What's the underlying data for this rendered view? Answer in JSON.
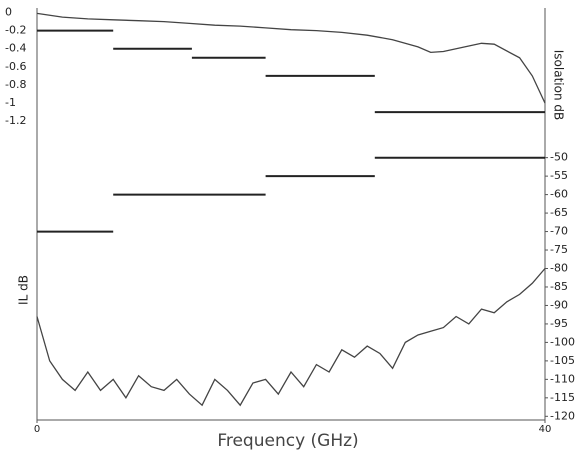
{
  "chart_data": {
    "type": "line",
    "xlabel": "Frequency (GHz)",
    "ylabel": "IL dB",
    "y2label": "Isolation dB",
    "xlim": [
      0,
      40
    ],
    "xticks": [
      0,
      40
    ],
    "ylim": [
      -4.5,
      0.05
    ],
    "yticks": [
      0,
      -0.2,
      -0.4,
      -0.6,
      -0.8,
      -1,
      -1.2
    ],
    "y2lim": [
      -121,
      -9.5
    ],
    "y2ticks": [
      -50,
      -55,
      -60,
      -65,
      -70,
      -75,
      -80,
      -85,
      -90,
      -95,
      -100,
      -105,
      -110,
      -115,
      -120
    ],
    "series": [
      {
        "color": "#444444",
        "line_width": 1.3,
        "axis": "y",
        "x": [
          0,
          2,
          4,
          6,
          8,
          10,
          12,
          14,
          16,
          18,
          20,
          22,
          24,
          26,
          28,
          30,
          31,
          32,
          34,
          35,
          36,
          38,
          39,
          40
        ],
        "values": [
          -0.01,
          -0.05,
          -0.07,
          -0.08,
          -0.09,
          -0.1,
          -0.12,
          -0.14,
          -0.15,
          -0.17,
          -0.19,
          -0.2,
          -0.22,
          -0.25,
          -0.3,
          -0.38,
          -0.44,
          -0.43,
          -0.37,
          -0.34,
          -0.35,
          -0.5,
          -0.7,
          -1.0
        ]
      },
      {
        "color": "#444444",
        "line_width": 1.3,
        "axis": "y2",
        "x": [
          0,
          1,
          2,
          3,
          4,
          5,
          6,
          7,
          8,
          9,
          10,
          11,
          12,
          13,
          14,
          15,
          16,
          17,
          18,
          19,
          20,
          21,
          22,
          23,
          24,
          25,
          26,
          27,
          28,
          29,
          30,
          31,
          32,
          33,
          34,
          35,
          36,
          37,
          38,
          39,
          40
        ],
        "values": [
          -93,
          -105,
          -110,
          -113,
          -108,
          -113,
          -110,
          -115,
          -109,
          -112,
          -113,
          -110,
          -114,
          -117,
          -110,
          -113,
          -117,
          -111,
          -110,
          -114,
          -108,
          -112,
          -106,
          -108,
          -102,
          -104,
          -101,
          -103,
          -107,
          -100,
          -98,
          -97,
          -96,
          -93,
          -95,
          -91,
          -92,
          -89,
          -87,
          -84,
          -80
        ]
      },
      {
        "color": "#222222",
        "line_width": 2,
        "axis": "y",
        "x": [
          0,
          6
        ],
        "values": [
          -0.2,
          -0.2
        ]
      },
      {
        "color": "#222222",
        "line_width": 2,
        "axis": "y",
        "x": [
          6,
          12.2
        ],
        "values": [
          -0.4,
          -0.4
        ]
      },
      {
        "color": "#222222",
        "line_width": 2,
        "axis": "y",
        "x": [
          12.2,
          18
        ],
        "values": [
          -0.5,
          -0.5
        ]
      },
      {
        "color": "#222222",
        "line_width": 2,
        "axis": "y",
        "x": [
          18,
          26.6
        ],
        "values": [
          -0.7,
          -0.7
        ]
      },
      {
        "color": "#222222",
        "line_width": 2,
        "axis": "y",
        "x": [
          26.6,
          40
        ],
        "values": [
          -1.1,
          -1.1
        ]
      },
      {
        "color": "#222222",
        "line_width": 2,
        "axis": "y2",
        "x": [
          0,
          6
        ],
        "values": [
          -70,
          -70
        ]
      },
      {
        "color": "#222222",
        "line_width": 2,
        "axis": "y2",
        "x": [
          6,
          18
        ],
        "values": [
          -60,
          -60
        ]
      },
      {
        "color": "#222222",
        "line_width": 2,
        "axis": "y2",
        "x": [
          18,
          26.6
        ],
        "values": [
          -55,
          -55
        ]
      },
      {
        "color": "#222222",
        "line_width": 2,
        "axis": "y2",
        "x": [
          26.6,
          40
        ],
        "values": [
          -50,
          -50
        ]
      }
    ]
  }
}
